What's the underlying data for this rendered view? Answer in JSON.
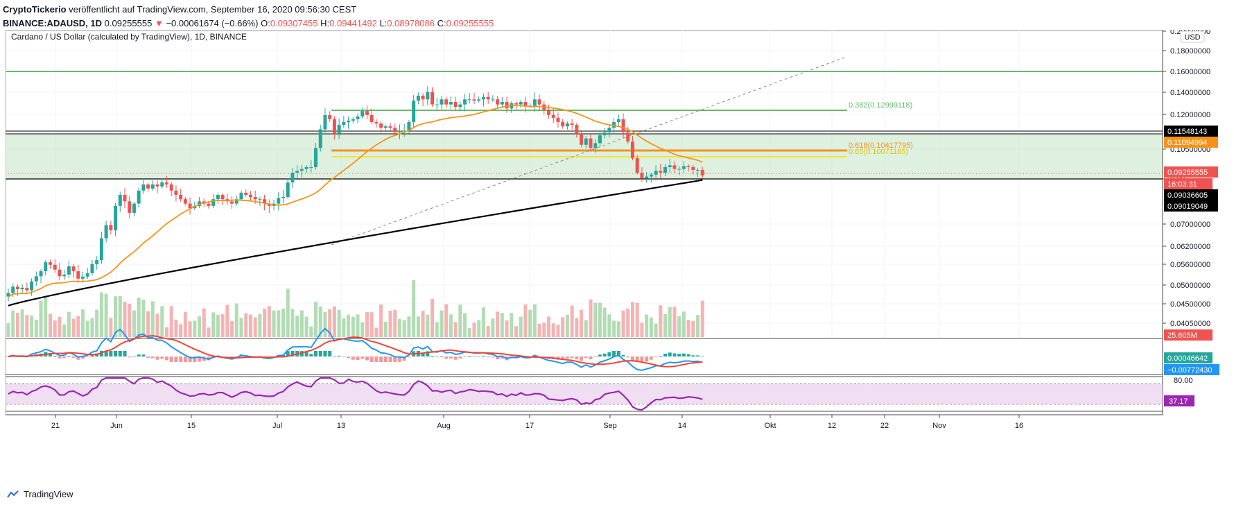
{
  "header": {
    "line1_publisher": "CryptoTickerio",
    "line1_rest": "veröffentlicht auf TradingView.com, September 16, 2020 09:56:30 CEST",
    "symbol": "BINANCE:ADAUSD, 1D",
    "last": "0.09255555",
    "change": "−0.00061674 (−0.66%)",
    "o_label": "O:",
    "o": "0.09307455",
    "h_label": "H:",
    "h": "0.09441492",
    "l_label": "L:",
    "l": "0.08978086",
    "c_label": "C:",
    "c": "0.09255555"
  },
  "chart_title": "Cardano / US Dollar (calculated by TradingView), 1D, BINANCE",
  "footer_brand": "TradingView",
  "colors": {
    "up": "#26a69a",
    "down": "#ef5350",
    "ma50": "#f7931a",
    "ma200": "#000000",
    "green_line": "#66bb6a",
    "zone": "#c8e6c9",
    "fib618": "#f7931a",
    "fib65": "#f5e23d",
    "macd": "#2196f3",
    "signal": "#f44336",
    "rsi": "#9c27b0",
    "rsi_band": "#e1bee7"
  },
  "chart_data": {
    "type": "candlestick",
    "x_ticks": [
      "21",
      "Jun",
      "15",
      "Jul",
      "13",
      "Aug",
      "17",
      "Sep",
      "14",
      "Okt",
      "12",
      "22",
      "Nov",
      "16"
    ],
    "y_ticks": [
      "0.20000000",
      "0.18000000",
      "0.16000000",
      "0.14000000",
      "0.12000000",
      "0.10500000",
      "0.09",
      "0.07000000",
      "0.06200000",
      "0.05600000",
      "0.05000000",
      "0.04500000",
      "0.04050000"
    ],
    "y_unit": "USD",
    "price_labels": [
      {
        "value": "0.11548143",
        "kind": "black"
      },
      {
        "value": "0.11094994",
        "kind": "orange"
      },
      {
        "value": "0.09255555",
        "kind": "red"
      },
      {
        "value": "16:03:31",
        "kind": "red"
      },
      {
        "value": "0.09036605",
        "kind": "black"
      },
      {
        "value": "0.09019049",
        "kind": "black"
      },
      {
        "value": "25.605M",
        "kind": "red"
      }
    ],
    "annotations": [
      {
        "text": "0.382(0.12999118)",
        "kind": "green"
      },
      {
        "text": "0.618(0.10417795)",
        "kind": "orange"
      },
      {
        "text": "0.65(0.10071165)",
        "kind": "yellow"
      }
    ],
    "horizontal_levels": {
      "resistance": 0.16,
      "fib382": 0.12999,
      "fib618": 0.10418,
      "fib65": 0.10071,
      "zone_top": 0.1155,
      "zone_bottom": 0.0902
    },
    "candles_close": [
      0.0478,
      0.0495,
      0.0488,
      0.0492,
      0.0485,
      0.051,
      0.0525,
      0.054,
      0.0568,
      0.056,
      0.0545,
      0.0525,
      0.053,
      0.0555,
      0.054,
      0.0518,
      0.0524,
      0.0534,
      0.0562,
      0.0575,
      0.065,
      0.07,
      0.068,
      0.078,
      0.083,
      0.08,
      0.075,
      0.079,
      0.085,
      0.088,
      0.086,
      0.088,
      0.087,
      0.089,
      0.088,
      0.085,
      0.083,
      0.081,
      0.079,
      0.077,
      0.078,
      0.08,
      0.079,
      0.078,
      0.081,
      0.083,
      0.081,
      0.08,
      0.079,
      0.081,
      0.084,
      0.083,
      0.082,
      0.081,
      0.081,
      0.079,
      0.078,
      0.079,
      0.0815,
      0.082,
      0.089,
      0.094,
      0.095,
      0.096,
      0.097,
      0.097,
      0.108,
      0.12,
      0.13,
      0.127,
      0.117,
      0.123,
      0.125,
      0.126,
      0.127,
      0.129,
      0.133,
      0.13,
      0.125,
      0.124,
      0.121,
      0.122,
      0.121,
      0.118,
      0.119,
      0.119,
      0.125,
      0.141,
      0.145,
      0.142,
      0.148,
      0.138,
      0.138,
      0.142,
      0.138,
      0.14,
      0.136,
      0.138,
      0.142,
      0.142,
      0.141,
      0.142,
      0.144,
      0.142,
      0.142,
      0.138,
      0.14,
      0.135,
      0.139,
      0.138,
      0.14,
      0.137,
      0.137,
      0.142,
      0.138,
      0.134,
      0.13,
      0.128,
      0.125,
      0.122,
      0.124,
      0.123,
      0.117,
      0.11,
      0.114,
      0.108,
      0.111,
      0.116,
      0.118,
      0.121,
      0.125,
      0.127,
      0.118,
      0.112,
      0.102,
      0.094,
      0.091,
      0.092,
      0.093,
      0.095,
      0.094,
      0.097,
      0.098,
      0.096,
      0.096,
      0.0975,
      0.097,
      0.0955,
      0.0955,
      0.0926
    ]
  },
  "panes": {
    "macd_labels": [
      "0.00046642",
      "−0.00772430"
    ],
    "rsi_ticks": [
      "80.00"
    ],
    "rsi_value": "37.17"
  }
}
